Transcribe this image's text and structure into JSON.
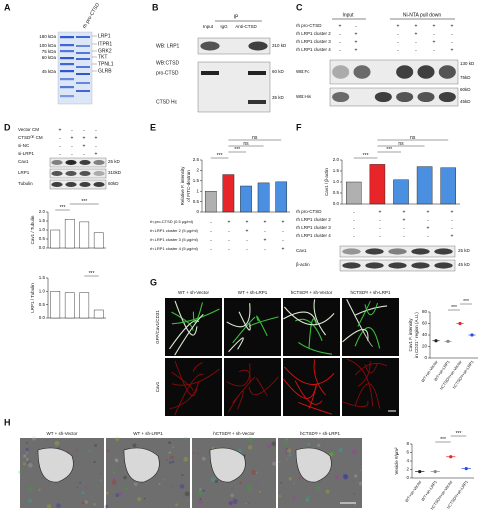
{
  "A": {
    "label": "A",
    "lane": "rh pro-CTSD",
    "markers": [
      "180 kDa",
      "100 kDa",
      "75 kDa",
      "60 kDa",
      "45 kDa"
    ],
    "proteins": [
      "LRP1",
      "ITPR1",
      "GRK2",
      "TKT",
      "TPNL1",
      "GLRB"
    ]
  },
  "B": {
    "label": "B",
    "ip": "IP",
    "lanes": [
      "Input",
      "IgG",
      "Anti-CTSD"
    ],
    "rows": [
      "WB: LRP1",
      "WB:CTSD",
      "pro-CTSD",
      "CTSD Hc"
    ],
    "sizes": [
      "310 kD",
      "60 kD",
      "35 kD"
    ]
  },
  "C": {
    "label": "C",
    "groups": [
      "Input",
      "Ni-NTA pull down"
    ],
    "conditions": [
      {
        "name": "rh pro-CTSD",
        "signs": [
          "+",
          "-",
          "+",
          "+",
          "+",
          "+"
        ]
      },
      {
        "name": "rh LRP1 cluster 2",
        "signs": [
          "-",
          "+",
          "-",
          "+",
          "-",
          "-"
        ]
      },
      {
        "name": "rh LRP1 cluster 3",
        "signs": [
          "-",
          "+",
          "-",
          "-",
          "+",
          "-"
        ]
      },
      {
        "name": "rh LRP1 cluster 4",
        "signs": [
          "-",
          "+",
          "-",
          "-",
          "-",
          "+"
        ]
      }
    ],
    "blots": [
      "WB:Fc",
      "WB:His"
    ],
    "sizes": [
      "130 kD",
      "75kD",
      "60kD",
      "45kD"
    ]
  },
  "D": {
    "label": "D",
    "conditions": [
      {
        "name": "Vector CM",
        "signs": [
          "+",
          "-",
          "-",
          "-"
        ]
      },
      {
        "name": "CTSDᴼᴱ CM",
        "signs": [
          "-",
          "+",
          "+",
          "+"
        ]
      },
      {
        "name": "si-NC",
        "signs": [
          "-",
          "-",
          "+",
          "-"
        ]
      },
      {
        "name": "si-LRP1",
        "signs": [
          "-",
          "-",
          "-",
          "+"
        ]
      }
    ],
    "blots": [
      "Cav1",
      "LRP1",
      "Tubulin"
    ],
    "sizes": [
      "25 kD",
      "310kD",
      "60kD"
    ],
    "charts": [
      {
        "type": "bar",
        "y_label": [
          "Cav1 / Tubulin"
        ],
        "categories": [
          null,
          null,
          null,
          null
        ],
        "values": [
          1.0,
          1.6,
          1.45,
          0.85
        ],
        "colors": [
          "#ffffff",
          "#ffffff",
          "#ffffff",
          "#ffffff"
        ],
        "ylim": [
          0,
          2
        ],
        "yticks": [
          {
            "value": 0,
            "label": "0.0"
          },
          0.5,
          {
            "value": 1,
            "label": "1.0"
          },
          1.5,
          {
            "value": 2,
            "label": "2.0"
          }
        ],
        "significance": [
          "***",
          "***"
        ]
      },
      {
        "type": "bar",
        "y_label": [
          "LRP1 / Tubulin"
        ],
        "categories": [
          null,
          null,
          null,
          null
        ],
        "values": [
          1.0,
          0.95,
          0.95,
          0.3
        ],
        "colors": [
          "#ffffff",
          "#ffffff",
          "#ffffff",
          "#ffffff"
        ],
        "ylim": [
          0,
          1.5
        ],
        "yticks": [
          {
            "value": 0,
            "label": "0.0"
          },
          0.5,
          {
            "value": 1,
            "label": "1.0"
          },
          1.5
        ],
        "significance": [
          "***"
        ]
      }
    ]
  },
  "E": {
    "label": "E",
    "conditions": [
      {
        "name": "rh pro-CTSD  (0.5 μg/ml)",
        "signs": [
          "-",
          "+",
          "+",
          "+",
          "+"
        ]
      },
      {
        "name": "rh LRP1 cluster 2  (5 μg/ml)",
        "signs": [
          "-",
          "-",
          "+",
          "-",
          "-"
        ]
      },
      {
        "name": "rh LRP1 cluster 3  (5 μg/ml)",
        "signs": [
          "-",
          "-",
          "-",
          "+",
          "-"
        ]
      },
      {
        "name": "rh LRP1 cluster 4  (5 μg/ml)",
        "signs": [
          "-",
          "-",
          "-",
          "-",
          "+"
        ]
      }
    ],
    "chart": {
      "type": "bar",
      "y_label": [
        "Relative F. intensity",
        "of FITC-dextran"
      ],
      "categories": [
        null,
        null,
        null,
        null,
        null
      ],
      "values": [
        1.0,
        1.8,
        1.25,
        1.4,
        1.45
      ],
      "colors": [
        "#b0b0b0",
        "#e8262a",
        "#4a8fe0",
        "#4a8fe0",
        "#4a8fe0"
      ],
      "ylim": [
        0,
        2.5
      ],
      "yticks": [
        0,
        {
          "value": 0.5,
          "label": "0.5"
        },
        1,
        1.5,
        2,
        2.5
      ],
      "significance": [
        "***",
        "***",
        "ns",
        "ns"
      ]
    }
  },
  "F": {
    "label": "F",
    "conditions": [
      {
        "name": "rh pro-CTSD",
        "signs": [
          "-",
          "+",
          "+",
          "+",
          "+"
        ]
      },
      {
        "name": "rh LRP1 cluster 2",
        "signs": [
          "-",
          "-",
          "+",
          "-",
          "-"
        ]
      },
      {
        "name": "rh LRP1 cluster 3",
        "signs": [
          "-",
          "-",
          "-",
          "+",
          "-"
        ]
      },
      {
        "name": "rh LRP1 cluster 4",
        "signs": [
          "-",
          "-",
          "-",
          "-",
          "+"
        ]
      }
    ],
    "blots": [
      "Cav1",
      "β-actin"
    ],
    "sizes": [
      "25 kD",
      "45 kD"
    ],
    "chart": {
      "type": "bar",
      "y_label": [
        "Cav1 / β-actin"
      ],
      "categories": [
        null,
        null,
        null,
        null,
        null
      ],
      "values": [
        1.0,
        1.8,
        1.1,
        1.7,
        1.65
      ],
      "colors": [
        "#b0b0b0",
        "#e8262a",
        "#4a8fe0",
        "#4a8fe0",
        "#4a8fe0"
      ],
      "ylim": [
        0,
        2
      ],
      "yticks": [
        {
          "value": 0,
          "label": "0.0"
        },
        0.5,
        {
          "value": 1,
          "label": "1.0"
        },
        1.5,
        {
          "value": 2,
          "label": "2.0"
        }
      ],
      "significance": [
        "***",
        "***",
        "ns",
        "ns"
      ]
    }
  },
  "G": {
    "label": "G",
    "groups": [
      "WT + sh-Vector",
      "WT + sh-LRP1",
      "hCTSDᵗᵍ + sh-Vector",
      "hCTSDᵗᵍ + sh-LRP1"
    ],
    "stains": [
      "GFP/Cav1/CD31",
      "Cav1"
    ],
    "chart": {
      "type": "dot",
      "y_label": [
        "Cav1 F. intensity",
        "in CD31⁺ region (A.U.)"
      ],
      "categories": [
        "WT+sh-Vector",
        "WT+sh-LRP1",
        "hCTSDᵗᵍ+sh-Vector",
        "hCTSDᵗᵍ+sh-LRP1"
      ],
      "values": [
        30,
        29,
        60,
        40
      ],
      "colors": [
        "#222222",
        "#888888",
        "#e8262a",
        "#2a4de0"
      ],
      "ylim": [
        0,
        80
      ],
      "yticks": [
        0,
        20,
        40,
        60,
        80
      ],
      "significance": [
        "***",
        "***"
      ]
    }
  },
  "H": {
    "label": "H",
    "groups": [
      "WT + sh-Vector",
      "WT + sh-LRP1",
      "hCTSDᵗᵍ + sh-Vector",
      "hCTSDᵗᵍ + sh-LRP1"
    ],
    "chart": {
      "type": "dot",
      "y_label": [
        "Vesicle #/μm²"
      ],
      "categories": [
        "WT+sh-Vector",
        "WT+sh-LRP1",
        "hCTSDᵗᵍ+sh-Vector",
        "hCTSDᵗᵍ+sh-LRP1"
      ],
      "values": [
        1.5,
        1.5,
        5,
        2.2
      ],
      "colors": [
        "#222222",
        "#888888",
        "#e8262a",
        "#2a4de0"
      ],
      "ylim": [
        0,
        8
      ],
      "yticks": [
        0,
        2,
        4,
        6,
        8
      ],
      "significance": [
        "***",
        "***"
      ]
    }
  }
}
